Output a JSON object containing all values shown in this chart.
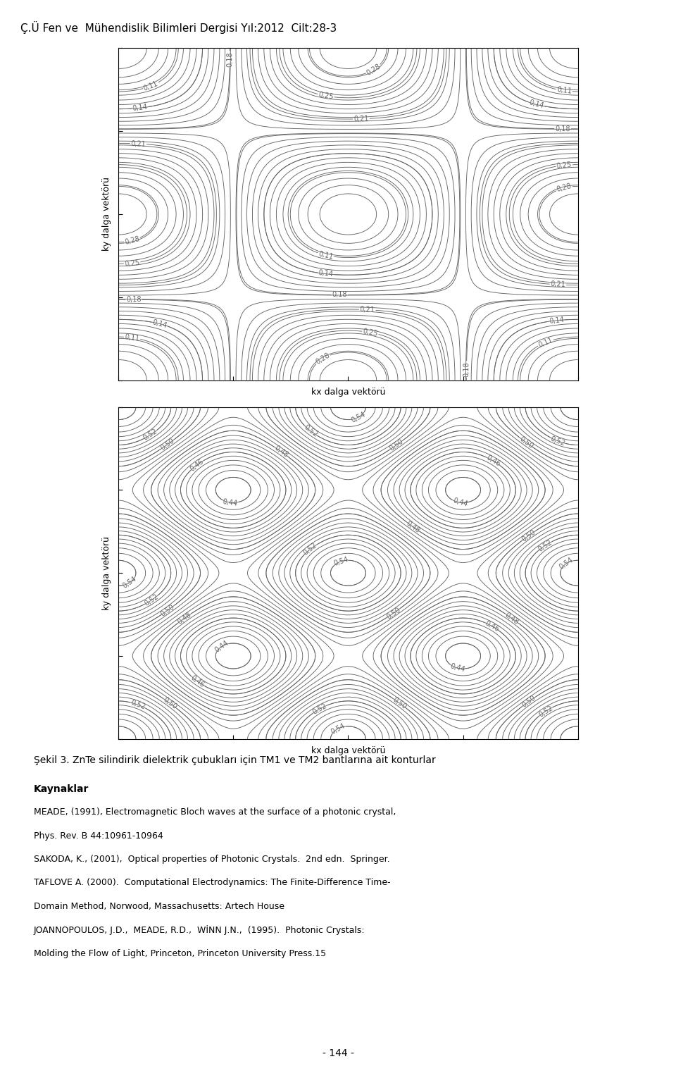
{
  "header": "Ç.Ü Fen ve  Mühendislik Bilimleri Dergisi Yıl:2012  Cilt:28-3",
  "xlabel": "kx dalga vektörü",
  "ylabel": "ky dalga vektörü",
  "caption": "Şekil 3. ZnTe silindirik dielektrik çubukları için TM1 ve TM2 bantlarına ait konturlar",
  "references_title": "Kaynaklar",
  "references": [
    "MEADE, (1991), Electromagnetic Bloch waves at the surface of a photonic crystal,",
    "Phys. Rev. B 44:10961-10964",
    "SAKODA, K., (2001),  Optical properties of Photonic Crystals.  2nd edn.  Springer.",
    "TAFLOVE A. (2000).  Computational Electrodynamics: The Finite-Difference Time-",
    "Domain Method, Norwood, Massachusetts: Artech House",
    "JOANNOPOULOS, J.D.,  MEADE, R.D.,  WİNN J.N.,  (1995).  Photonic Crystals:",
    "Molding the Flow of Light, Princeton, Princeton University Press.15"
  ],
  "footer": "- 144 -",
  "contour_color": "#666666",
  "bg_color": "#ffffff"
}
